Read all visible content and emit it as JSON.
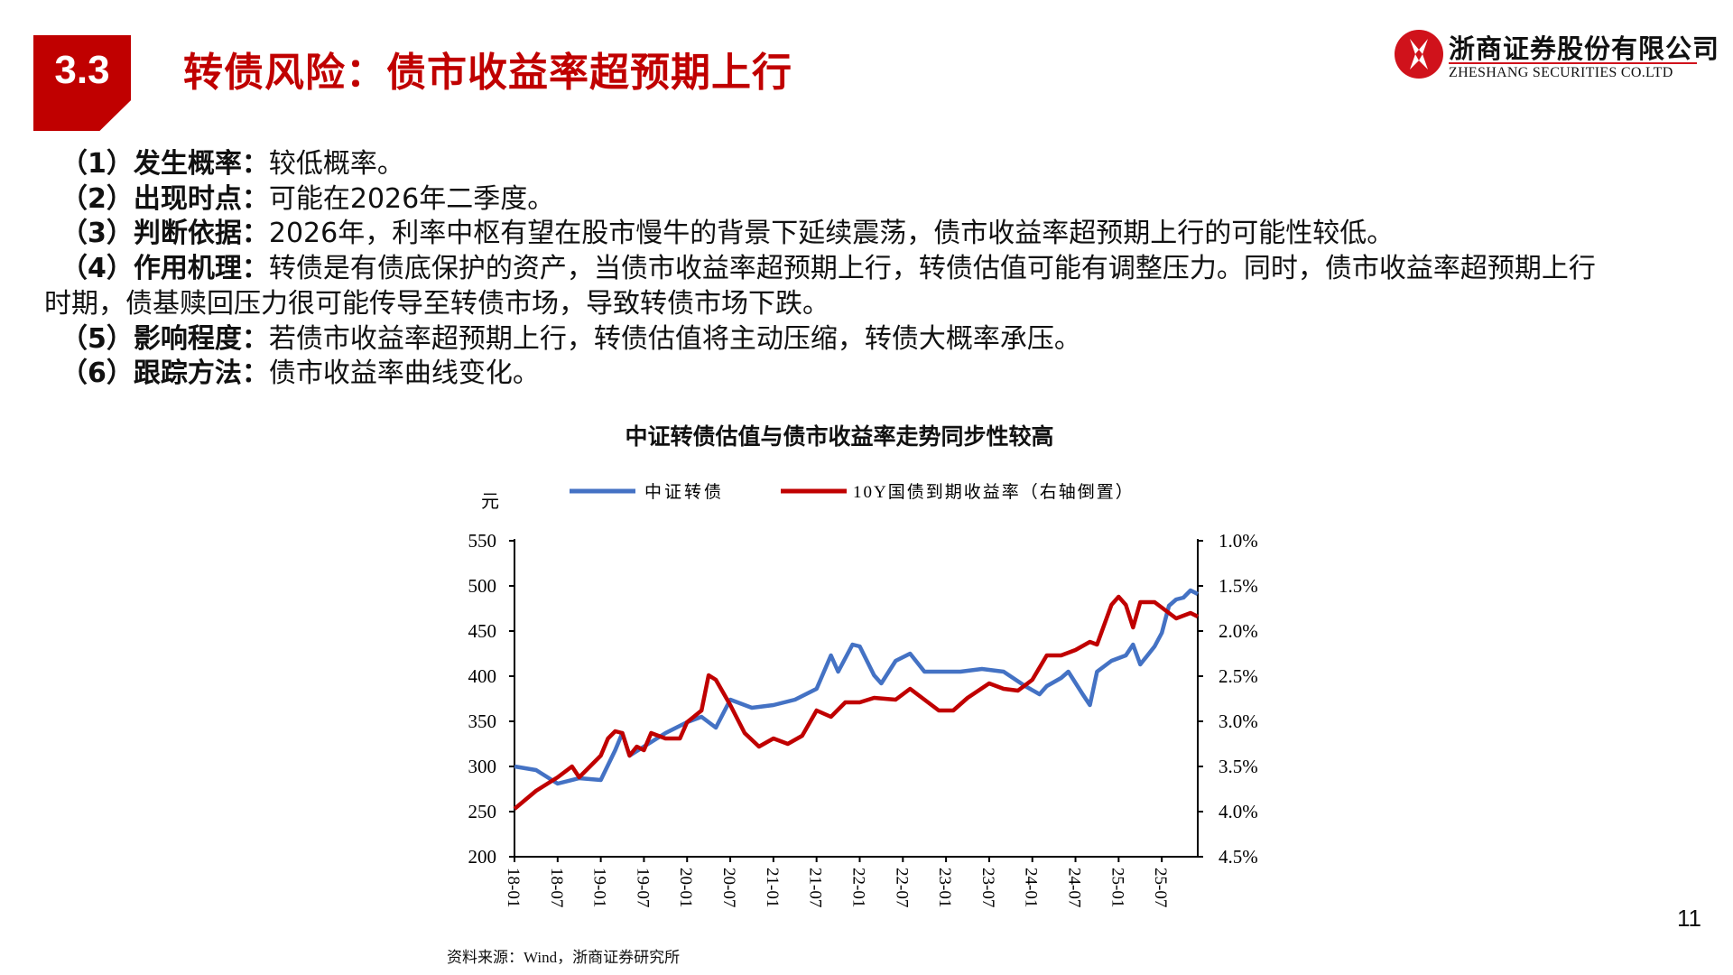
{
  "header": {
    "section_number": "3.3",
    "title": "转债风险：债市收益率超预期上行",
    "logo_cn": "浙商证券股份有限公司",
    "logo_en": "ZHESHANG SECURITIES CO.LTD"
  },
  "points": [
    {
      "label": "（1）发生概率：",
      "text": "较低概率。"
    },
    {
      "label": "（2）出现时点：",
      "text": "可能在2026年二季度。"
    },
    {
      "label": "（3）判断依据：",
      "text": "2026年，利率中枢有望在股市慢牛的背景下延续震荡，债市收益率超预期上行的可能性较低。"
    },
    {
      "label": "（4）作用机理：",
      "text": "转债是有债底保护的资产，当债市收益率超预期上行，转债估值可能有调整压力。同时，债市收益率超预期上行",
      "text_cont": "时期，债基赎回压力很可能传导至转债市场，导致转债市场下跌。"
    },
    {
      "label": "（5）影响程度：",
      "text": "若债市收益率超预期上行，转债估值将主动压缩，转债大概率承压。"
    },
    {
      "label": "（6）跟踪方法：",
      "text": "债市收益率曲线变化。"
    }
  ],
  "chart_data": {
    "type": "line",
    "title": "中证转债估值与债市收益率走势同步性较高",
    "ylabel": "元",
    "ylim": [
      200,
      550
    ],
    "yticks": [
      "550",
      "500",
      "450",
      "400",
      "350",
      "300",
      "250",
      "200"
    ],
    "y2lim": [
      1.0,
      4.5
    ],
    "y2_inverted": true,
    "y2ticks": [
      "1.0%",
      "1.5%",
      "2.0%",
      "2.5%",
      "3.0%",
      "3.5%",
      "4.0%",
      "4.5%"
    ],
    "xticks": [
      "18-01",
      "18-07",
      "19-01",
      "19-07",
      "20-01",
      "20-07",
      "21-01",
      "21-07",
      "22-01",
      "22-07",
      "23-01",
      "23-07",
      "24-01",
      "24-07",
      "25-01",
      "25-07"
    ],
    "x_range_months_from_2018_01": [
      0,
      95
    ],
    "legend_position": "top",
    "series": [
      {
        "name": "中证转债",
        "axis": "left",
        "color": "#4472c4",
        "months": [
          0,
          3,
          6,
          9,
          12,
          14,
          15,
          16,
          18,
          21,
          24,
          26,
          28,
          30,
          33,
          36,
          39,
          42,
          44,
          45,
          47,
          48,
          50,
          51,
          53,
          55,
          57,
          59,
          62,
          65,
          68,
          71,
          73,
          74,
          76,
          77,
          79,
          80,
          81,
          83,
          85,
          86,
          87,
          89,
          90,
          91,
          92,
          93,
          94,
          95
        ],
        "values": [
          300,
          296,
          281,
          287,
          285,
          318,
          337,
          312,
          322,
          337,
          349,
          355,
          343,
          374,
          365,
          368,
          374,
          386,
          423,
          405,
          435,
          433,
          401,
          392,
          417,
          425,
          405,
          405,
          405,
          408,
          405,
          389,
          380,
          389,
          398,
          405,
          380,
          368,
          405,
          417,
          423,
          435,
          413,
          433,
          448,
          478,
          485,
          487,
          495,
          491
        ]
      },
      {
        "name": "10Y国债到期收益率（右轴倒置）",
        "axis": "right",
        "color": "#c00000",
        "months": [
          0,
          3,
          6,
          8,
          9,
          12,
          13,
          14,
          15,
          16,
          17,
          18,
          19,
          21,
          23,
          24,
          26,
          27,
          28,
          30,
          32,
          34,
          36,
          38,
          40,
          42,
          44,
          46,
          48,
          50,
          53,
          55,
          57,
          59,
          61,
          63,
          66,
          68,
          70,
          72,
          74,
          76,
          78,
          80,
          81,
          83,
          84,
          85,
          86,
          87,
          89,
          91,
          92,
          94,
          95
        ],
        "values": [
          3.97,
          3.77,
          3.62,
          3.5,
          3.62,
          3.38,
          3.19,
          3.11,
          3.13,
          3.38,
          3.28,
          3.32,
          3.13,
          3.19,
          3.19,
          3.01,
          2.88,
          2.49,
          2.54,
          2.82,
          3.13,
          3.28,
          3.19,
          3.25,
          3.16,
          2.88,
          2.95,
          2.79,
          2.79,
          2.74,
          2.76,
          2.64,
          2.76,
          2.88,
          2.88,
          2.74,
          2.58,
          2.64,
          2.66,
          2.54,
          2.27,
          2.27,
          2.21,
          2.12,
          2.15,
          1.71,
          1.62,
          1.71,
          1.96,
          1.68,
          1.68,
          1.8,
          1.86,
          1.8,
          1.84
        ]
      }
    ],
    "source": "资料来源：Wind，浙商证券研究所"
  },
  "page_number": "11"
}
